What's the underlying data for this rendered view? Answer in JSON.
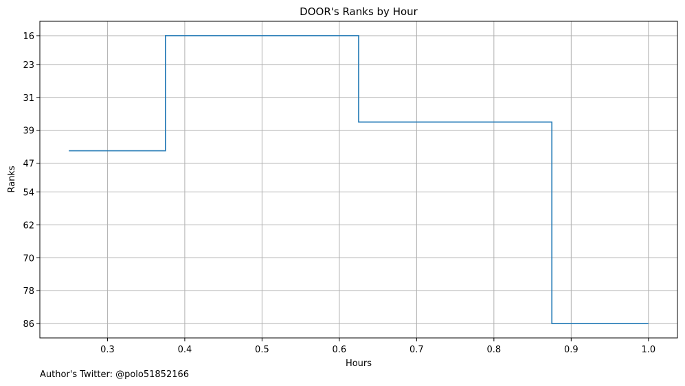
{
  "footer": {
    "credit": "Author's Twitter: @polo51852166"
  },
  "colors": {
    "line": "#1f77b4",
    "grid": "#b0b0b0",
    "axis": "#000000"
  },
  "chart_data": {
    "type": "line",
    "drawstyle": "steps-mid",
    "title": "DOOR's Ranks by Hour",
    "xlabel": "Hours",
    "ylabel": "Ranks",
    "grid": true,
    "y_inverted": true,
    "xlim": [
      0.2125,
      1.0375
    ],
    "ylim": [
      89.5,
      12.5
    ],
    "x_ticks": [
      0.3,
      0.4,
      0.5,
      0.6,
      0.7,
      0.8,
      0.9,
      1.0
    ],
    "x_tick_labels": [
      "0.3",
      "0.4",
      "0.5",
      "0.6",
      "0.7",
      "0.8",
      "0.9",
      "1.0"
    ],
    "y_ticks": [
      16,
      23,
      31,
      39,
      47,
      54,
      62,
      70,
      78,
      86
    ],
    "y_tick_labels": [
      "16",
      "23",
      "31",
      "39",
      "47",
      "54",
      "62",
      "70",
      "78",
      "86"
    ],
    "series": [
      {
        "x": [
          0.25,
          0.5,
          0.75,
          1.0
        ],
        "y": [
          44,
          16,
          37,
          86
        ]
      }
    ]
  }
}
